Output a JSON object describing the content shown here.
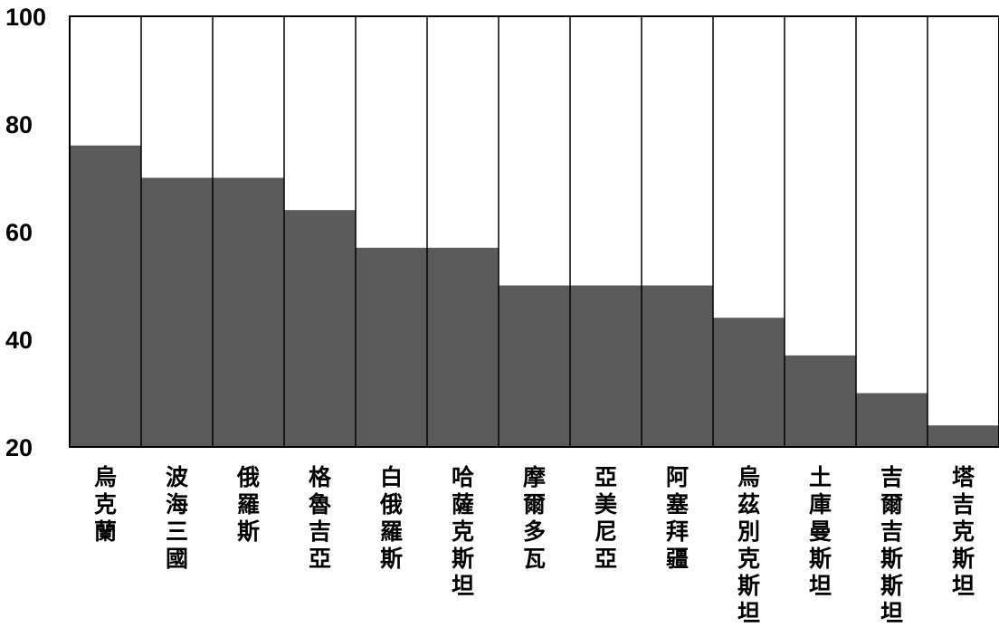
{
  "chart_data": {
    "type": "bar",
    "categories": [
      "烏克蘭",
      "波海三國",
      "俄羅斯",
      "格魯吉亞",
      "白俄羅斯",
      "哈薩克斯坦",
      "摩爾多瓦",
      "亞美尼亞",
      "阿塞拜疆",
      "烏茲別克斯坦",
      "土庫曼斯坦",
      "吉爾吉斯斯坦",
      "塔吉克斯坦"
    ],
    "values": [
      76,
      70,
      70,
      64,
      57,
      57,
      50,
      50,
      50,
      44,
      37,
      30,
      24
    ],
    "title": "",
    "xlabel": "",
    "ylabel": "",
    "ylim": [
      20,
      100
    ],
    "yticks": [
      "100",
      "80",
      "60",
      "40",
      "20"
    ],
    "grid": false,
    "legend": "none",
    "colors": {
      "bar": "#5a5a5a",
      "background": "#ffffff",
      "separator": "#000000"
    }
  }
}
